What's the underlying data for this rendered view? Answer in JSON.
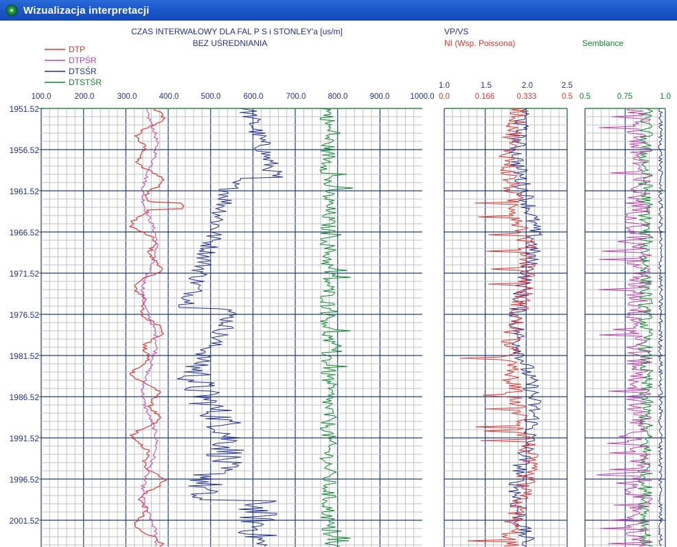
{
  "window": {
    "title": "Wizualizacja interpretacji"
  },
  "colors": {
    "titlebar": "#1c58c9",
    "grid_minor": "#c0c0c0",
    "grid_major": "#1a3a8a",
    "dtp": "#e8302a",
    "dtpsr": "#c040b0",
    "dtssr": "#1f2f96",
    "dtstsr": "#0a8a2a",
    "blue_text": "#1f2f96",
    "red_text": "#e8302a",
    "green_text": "#0a8a2a"
  },
  "panel1": {
    "title_line1": "CZAS INTERWAŁOWY DLA FAL P S i STONLEY'a [us/m]",
    "title_line2": "BEZ UŚREDNIANIA",
    "legend": [
      {
        "label": "DTP",
        "color": "#e8302a"
      },
      {
        "label": "DTPŚR",
        "color": "#c040b0"
      },
      {
        "label": "DTSŚR",
        "color": "#1f2f96"
      },
      {
        "label": "DTSTŚR",
        "color": "#0a8a2a"
      }
    ],
    "x_ticks": [
      "100.0",
      "200.0",
      "300.0",
      "400.0",
      "500.0",
      "600.0",
      "700.0",
      "800.0",
      "900.0",
      "1000.0"
    ]
  },
  "panel2": {
    "label_vpvs": "VP/VS",
    "label_ni": "NI (Wsp. Poissona)",
    "x_ticks_vpvs": [
      "1.0",
      "1.5",
      "2.0",
      "2.5"
    ],
    "x_ticks_ni": [
      "0.0",
      "0.166",
      "0.333",
      "0.5"
    ]
  },
  "panel3": {
    "label": "Semblance",
    "x_ticks": [
      "0.5",
      "0.75",
      "1.0"
    ]
  },
  "depth_ticks": [
    "1951.52",
    "1956.52",
    "1961.52",
    "1966.52",
    "1971.52",
    "1976.52",
    "1981.52",
    "1986.52",
    "1991.52",
    "1996.52",
    "2001.52"
  ]
}
